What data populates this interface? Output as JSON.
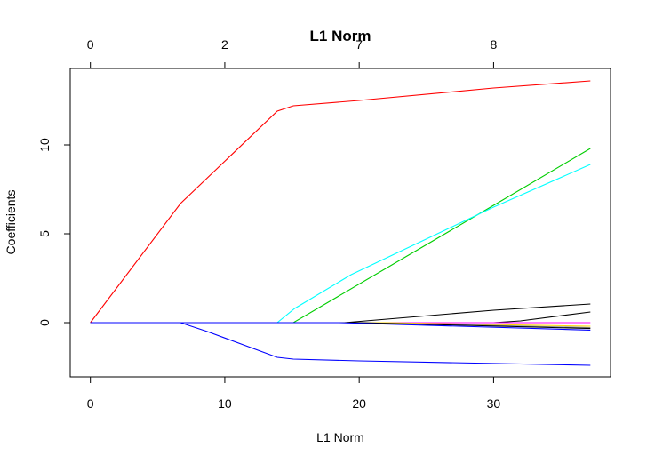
{
  "chart_data": {
    "type": "line",
    "title": "L1 Norm",
    "xlabel": "L1 Norm",
    "ylabel": "Coefficients",
    "xlim": [
      -1.5,
      38.7
    ],
    "ylim": [
      -3.05,
      14.3
    ],
    "x_ticks": [
      0,
      10,
      20,
      30
    ],
    "y_ticks": [
      0,
      5,
      10
    ],
    "top_axis": {
      "positions": [
        0,
        10,
        20,
        30
      ],
      "labels": [
        "0",
        "2",
        "7",
        "8"
      ]
    },
    "grid": false,
    "legend": "none",
    "series": [
      {
        "color": "#ff0000",
        "points": [
          [
            0,
            0
          ],
          [
            6.7,
            6.7
          ],
          [
            13.9,
            11.9
          ],
          [
            15.1,
            12.2
          ],
          [
            20,
            12.5
          ],
          [
            30,
            13.2
          ],
          [
            37.2,
            13.6
          ]
        ]
      },
      {
        "color": "#00cd00",
        "points": [
          [
            0,
            0
          ],
          [
            15.1,
            0
          ],
          [
            23,
            3.5
          ],
          [
            30,
            6.6
          ],
          [
            37.2,
            9.8
          ]
        ]
      },
      {
        "color": "#00ffff",
        "points": [
          [
            0,
            0
          ],
          [
            13.9,
            0
          ],
          [
            15.2,
            0.8
          ],
          [
            19.4,
            2.7
          ],
          [
            30,
            6.5
          ],
          [
            37.2,
            8.9
          ]
        ]
      },
      {
        "color": "#0000ff",
        "points": [
          [
            0,
            0
          ],
          [
            6.7,
            0
          ],
          [
            8.7,
            -0.5
          ],
          [
            13.9,
            -1.95
          ],
          [
            15.1,
            -2.05
          ],
          [
            20,
            -2.15
          ],
          [
            37.2,
            -2.4
          ]
        ]
      },
      {
        "color": "#000000",
        "points": [
          [
            0,
            0
          ],
          [
            18.9,
            0
          ],
          [
            30,
            0.7
          ],
          [
            37.2,
            1.05
          ]
        ]
      },
      {
        "color": "#000000",
        "points": [
          [
            0,
            0
          ],
          [
            30,
            0
          ],
          [
            32,
            0.1
          ],
          [
            37.2,
            0.6
          ]
        ]
      },
      {
        "color": "#ff00ff",
        "points": [
          [
            0,
            0
          ],
          [
            37.2,
            0
          ]
        ]
      },
      {
        "color": "#ffd700",
        "points": [
          [
            0,
            0
          ],
          [
            22,
            0
          ],
          [
            37.2,
            -0.2
          ]
        ]
      },
      {
        "color": "#808080",
        "points": [
          [
            0,
            0
          ],
          [
            20,
            0
          ],
          [
            37.2,
            -0.28
          ]
        ]
      },
      {
        "color": "#000000",
        "points": [
          [
            0,
            0
          ],
          [
            20,
            0
          ],
          [
            37.2,
            -0.33
          ]
        ]
      },
      {
        "color": "#0000ff",
        "points": [
          [
            0,
            0
          ],
          [
            18.5,
            0
          ],
          [
            37.2,
            -0.42
          ]
        ]
      }
    ]
  }
}
